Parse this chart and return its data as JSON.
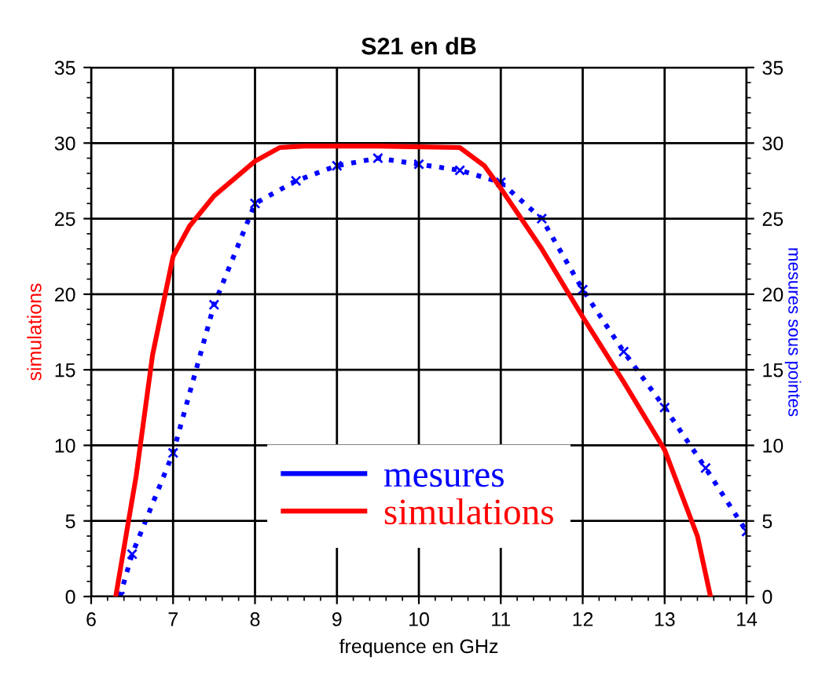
{
  "chart_data": {
    "type": "line",
    "title": "S21 en dB",
    "xlabel": "frequence en GHz",
    "ylabel": "simulations",
    "y2label": "mesures sous pointes",
    "xlim": [
      6,
      14
    ],
    "xticks": [
      6,
      7,
      8,
      9,
      10,
      11,
      12,
      13,
      14
    ],
    "ylim": [
      0,
      35
    ],
    "yticks": [
      0,
      5,
      10,
      15,
      20,
      25,
      30,
      35
    ],
    "y2lim": [
      0,
      35
    ],
    "y2ticks": [
      0,
      5,
      10,
      15,
      20,
      25,
      30,
      35
    ],
    "grid": true,
    "legend": "bottom",
    "series": [
      {
        "name": "mesures",
        "color": "#0000ff",
        "axis": "y2",
        "line_style": "dotted",
        "marker": "cross",
        "x": [
          6.35,
          6.5,
          7,
          7.5,
          8,
          8.5,
          9,
          9.5,
          10,
          10.5,
          11,
          11.5,
          12,
          12.5,
          13,
          13.5,
          14
        ],
        "values": [
          0,
          2.8,
          9.5,
          19.3,
          26,
          27.5,
          28.5,
          29,
          28.6,
          28.2,
          27.4,
          25,
          20.3,
          16.2,
          12.5,
          8.5,
          4.3
        ]
      },
      {
        "name": "simulations",
        "color": "#ff0000",
        "line_style": "solid",
        "marker": "none",
        "x": [
          6.3,
          6.55,
          6.75,
          7,
          7.2,
          7.5,
          8,
          8.3,
          8.6,
          9.5,
          10.5,
          10.8,
          11,
          11.5,
          12,
          12.5,
          13,
          13.4,
          13.56
        ],
        "values": [
          0,
          8,
          16,
          22.5,
          24.5,
          26.5,
          28.8,
          29.7,
          29.8,
          29.8,
          29.7,
          28.5,
          27,
          23,
          18.5,
          14.2,
          9.7,
          4,
          0
        ]
      }
    ]
  }
}
